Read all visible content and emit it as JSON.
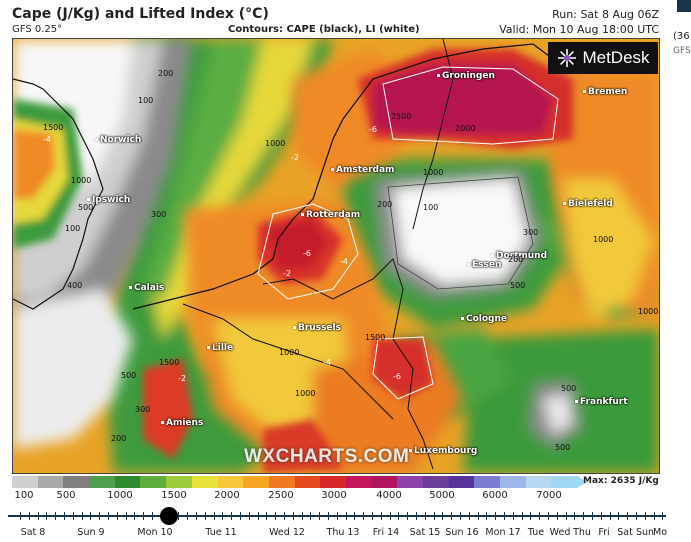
{
  "header": {
    "title": "Cape (J/Kg) and Lifted Index (°C)",
    "model": "GFS 0.25°",
    "contours": "Contours: CAPE (black), LI (white)",
    "run": "Run: Sat 8 Aug 06Z",
    "valid": "Valid: Mon 10 Aug 18:00 UTC"
  },
  "side_panel": {
    "label": "(36",
    "model": "GFS"
  },
  "logo": {
    "text": "MetDesk"
  },
  "watermark": "WXCHARTS.COM",
  "cities": [
    {
      "name": "Groningen",
      "id": "groningen"
    },
    {
      "name": "Bremen",
      "id": "bremen"
    },
    {
      "name": "Norwich",
      "id": "norwich"
    },
    {
      "name": "Amsterdam",
      "id": "amsterdam"
    },
    {
      "name": "Bielefeld",
      "id": "bielefeld"
    },
    {
      "name": "Ipswich",
      "id": "ipswich"
    },
    {
      "name": "Rotterdam",
      "id": "rotterdam"
    },
    {
      "name": "Dortmund",
      "id": "dortmund"
    },
    {
      "name": "Essen",
      "id": "essen"
    },
    {
      "name": "Calais",
      "id": "calais"
    },
    {
      "name": "Brussels",
      "id": "brussels"
    },
    {
      "name": "Cologne",
      "id": "cologne"
    },
    {
      "name": "Lille",
      "id": "lille"
    },
    {
      "name": "Frankfurt",
      "id": "frankfurt"
    },
    {
      "name": "Amiens",
      "id": "amiens"
    },
    {
      "name": "Luxembourg",
      "id": "luxembourg"
    }
  ],
  "contour_labels": [
    "200",
    "100",
    "1500",
    "1000",
    "500",
    "300",
    "100",
    "1000",
    "2500",
    "2000",
    "1000",
    "200",
    "100",
    "300",
    "200",
    "400",
    "1000",
    "500",
    "1000",
    "1500",
    "1000",
    "1500",
    "500",
    "300",
    "200",
    "500",
    "1000",
    "500"
  ],
  "li_labels": [
    "-4",
    "-6",
    "-2",
    "-4",
    "-6",
    "-2",
    "-4",
    "-2",
    "-6"
  ],
  "colorbar": {
    "ticks": [
      "100",
      "500",
      "1000",
      "1500",
      "2000",
      "2500",
      "3000",
      "4000",
      "5000",
      "6000",
      "7000"
    ],
    "max_label": "Max: 2635 J/Kg",
    "colors": [
      "#cfcfcf",
      "#a9a9a9",
      "#7f7f7f",
      "#4f9d4f",
      "#2f8a2f",
      "#5fae3f",
      "#9ccc3c",
      "#e6e23a",
      "#f7c93a",
      "#f5a623",
      "#ef7a21",
      "#e54a1f",
      "#d62828",
      "#c2185b",
      "#b0155f",
      "#8e44ad",
      "#6a3d9a",
      "#54339a",
      "#7b7bd1",
      "#9fb7e8",
      "#b8d8f2",
      "#9fd7f5"
    ]
  },
  "timeline": {
    "labels": [
      "Sat 8",
      "Sun 9",
      "Mon 10",
      "Tue 11",
      "Wed 12",
      "Thu 13",
      "Fri 14",
      "Sat 15",
      "Sun 16",
      "Mon 17",
      "Tue",
      "Wed",
      "Thu",
      "Fri",
      "Sat",
      "Sun",
      "Mo"
    ],
    "selected": "Mon 10"
  }
}
